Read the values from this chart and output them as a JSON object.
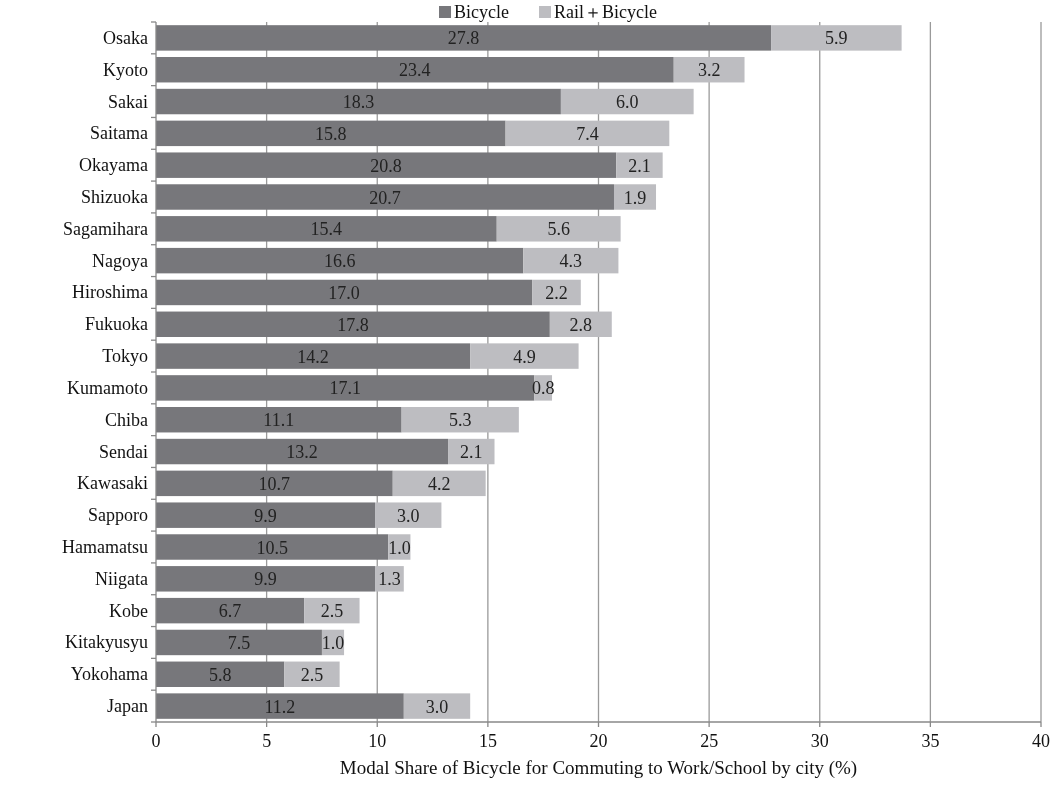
{
  "chart_data": {
    "type": "bar",
    "orientation": "horizontal",
    "stacked": true,
    "categories": [
      "Osaka",
      "Kyoto",
      "Sakai",
      "Saitama",
      "Okayama",
      "Shizuoka",
      "Sagamihara",
      "Nagoya",
      "Hiroshima",
      "Fukuoka",
      "Tokyo",
      "Kumamoto",
      "Chiba",
      "Sendai",
      "Kawasaki",
      "Sapporo",
      "Hamamatsu",
      "Niigata",
      "Kobe",
      "Kitakyusyu",
      "Yokohama",
      "Japan"
    ],
    "series": [
      {
        "name": "Bicycle",
        "color": "#77777b",
        "values": [
          27.8,
          23.4,
          18.3,
          15.8,
          20.8,
          20.7,
          15.4,
          16.6,
          17.0,
          17.8,
          14.2,
          17.1,
          11.1,
          13.2,
          10.7,
          9.9,
          10.5,
          9.9,
          6.7,
          7.5,
          5.8,
          11.2
        ],
        "value_labels": [
          "27.8",
          "23.4",
          "18.3",
          "15.8",
          "20.8",
          "20.7",
          "15.4",
          "16.6",
          "17.0",
          "17.8",
          "14.2",
          "17.1",
          "11.1",
          "13.2",
          "10.7",
          "9.9",
          "10.5",
          "9.9",
          "6.7",
          "7.5",
          "5.8",
          "11.2"
        ]
      },
      {
        "name": "Rail＋Bicycle",
        "color": "#bdbdc1",
        "values": [
          5.9,
          3.2,
          6.0,
          7.4,
          2.1,
          1.9,
          5.6,
          4.3,
          2.2,
          2.8,
          4.9,
          0.8,
          5.3,
          2.1,
          4.2,
          3.0,
          1.0,
          1.3,
          2.5,
          1.0,
          2.5,
          3.0
        ],
        "value_labels": [
          "5.9",
          "3.2",
          "6.0",
          "7.4",
          "2.1",
          "1.9",
          "5.6",
          "4.3",
          "2.2",
          "2.8",
          "4.9",
          "0.8",
          "5.3",
          "2.1",
          "4.2",
          "3.0",
          "1.0",
          "1.3",
          "2.5",
          "1.0",
          "2.5",
          "3.0"
        ]
      }
    ],
    "xlabel": "Modal Share of Bicycle for Commuting to Work/School by city (%)",
    "xlim": [
      0,
      40
    ],
    "xticks": [
      0,
      5,
      10,
      15,
      20,
      25,
      30,
      35,
      40
    ],
    "grid": "x",
    "legend": "top"
  }
}
